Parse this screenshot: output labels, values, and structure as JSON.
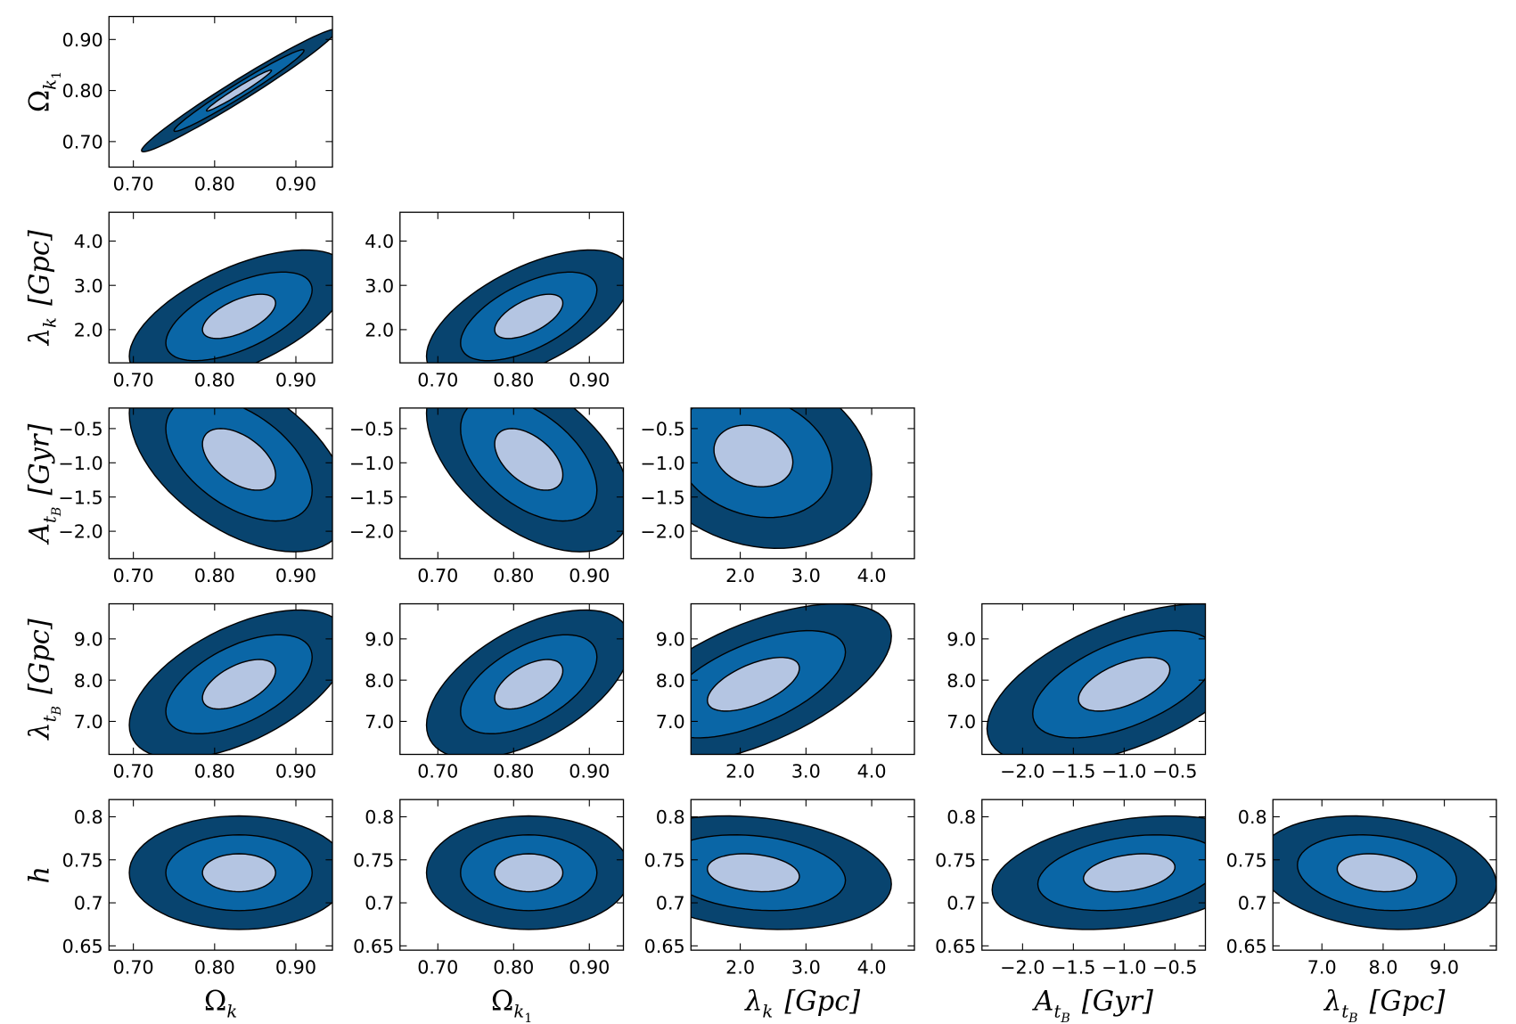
{
  "chart_data": {
    "type": "corner-contour",
    "variables": [
      {
        "symbol": "Ω",
        "sub": "k",
        "lim": [
          0.67,
          0.945
        ],
        "ticks": [
          {
            "value": 0.7,
            "label": "0.70"
          },
          {
            "value": 0.8,
            "label": "0.80"
          },
          {
            "value": 0.9,
            "label": "0.90"
          }
        ]
      },
      {
        "symbol": "Ω",
        "sub": "k",
        "sub2": "1",
        "lim": [
          0.65,
          0.945
        ],
        "ticks": [
          {
            "value": 0.7,
            "label": "0.70"
          },
          {
            "value": 0.8,
            "label": "0.80"
          },
          {
            "value": 0.9,
            "label": "0.90"
          }
        ]
      },
      {
        "symbol": "λ",
        "sub": "k",
        "unit": "[Gpc]",
        "lim": [
          1.25,
          4.65
        ],
        "ticks": [
          {
            "value": 2,
            "label": "2.0"
          },
          {
            "value": 3,
            "label": "3.0"
          },
          {
            "value": 4,
            "label": "4.0"
          }
        ]
      },
      {
        "symbol": "A",
        "sub": "t",
        "sub2": "B",
        "unit": "[Gyr]",
        "lim": [
          -2.4,
          -0.2
        ],
        "ticks": [
          {
            "value": -2,
            "label": "−2.0"
          },
          {
            "value": -1.5,
            "label": "−1.5"
          },
          {
            "value": -1,
            "label": "−1.0"
          },
          {
            "value": -0.5,
            "label": "−0.5"
          }
        ]
      },
      {
        "symbol": "λ",
        "sub": "t",
        "sub2": "B",
        "unit": "[Gpc]",
        "lim": [
          6.2,
          9.85
        ],
        "ticks": [
          {
            "value": 7,
            "label": "7.0"
          },
          {
            "value": 8,
            "label": "8.0"
          },
          {
            "value": 9,
            "label": "9.0"
          }
        ]
      },
      {
        "symbol": "h",
        "lim": [
          0.645,
          0.82
        ],
        "ticks": [
          0.65,
          0.7,
          0.75,
          0.8
        ]
      }
    ],
    "levels": [
      {
        "k": 3,
        "color": "#08446f"
      },
      {
        "k": 2,
        "color": "#0a66a6"
      },
      {
        "k": 1,
        "color": "#b4c5e2"
      }
    ],
    "panels": [
      {
        "x": 0,
        "y": 1,
        "center": [
          0.83,
          0.8
        ],
        "sigma": [
          0.04,
          0.04
        ],
        "rho": 0.98
      },
      {
        "x": 0,
        "y": 2,
        "center": [
          0.83,
          2.3
        ],
        "sigma": [
          0.045,
          0.5
        ],
        "rho": 0.6
      },
      {
        "x": 1,
        "y": 2,
        "center": [
          0.82,
          2.3
        ],
        "sigma": [
          0.045,
          0.5
        ],
        "rho": 0.6
      },
      {
        "x": 0,
        "y": 3,
        "center": [
          0.83,
          -0.95
        ],
        "sigma": [
          0.045,
          0.45
        ],
        "rho": -0.5
      },
      {
        "x": 1,
        "y": 3,
        "center": [
          0.82,
          -0.95
        ],
        "sigma": [
          0.045,
          0.45
        ],
        "rho": -0.5
      },
      {
        "x": 2,
        "y": 3,
        "center": [
          2.2,
          -0.9
        ],
        "sigma": [
          0.6,
          0.45
        ],
        "rho": -0.2
      },
      {
        "x": 0,
        "y": 4,
        "center": [
          0.83,
          7.9
        ],
        "sigma": [
          0.045,
          0.6
        ],
        "rho": 0.55
      },
      {
        "x": 1,
        "y": 4,
        "center": [
          0.82,
          7.9
        ],
        "sigma": [
          0.045,
          0.6
        ],
        "rho": 0.55
      },
      {
        "x": 2,
        "y": 4,
        "center": [
          2.2,
          7.9
        ],
        "sigma": [
          0.7,
          0.65
        ],
        "rho": 0.6
      },
      {
        "x": 3,
        "y": 4,
        "center": [
          -1.0,
          7.9
        ],
        "sigma": [
          0.45,
          0.65
        ],
        "rho": 0.55
      },
      {
        "x": 0,
        "y": 5,
        "center": [
          0.83,
          0.735
        ],
        "sigma": [
          0.045,
          0.022
        ],
        "rho": 0
      },
      {
        "x": 1,
        "y": 5,
        "center": [
          0.82,
          0.735
        ],
        "sigma": [
          0.045,
          0.022
        ],
        "rho": 0
      },
      {
        "x": 2,
        "y": 5,
        "center": [
          2.2,
          0.735
        ],
        "sigma": [
          0.7,
          0.022
        ],
        "rho": -0.2
      },
      {
        "x": 3,
        "y": 5,
        "center": [
          -0.95,
          0.735
        ],
        "sigma": [
          0.45,
          0.022
        ],
        "rho": 0.3
      },
      {
        "x": 4,
        "y": 5,
        "center": [
          7.9,
          0.735
        ],
        "sigma": [
          0.65,
          0.022
        ],
        "rho": -0.2
      }
    ]
  }
}
